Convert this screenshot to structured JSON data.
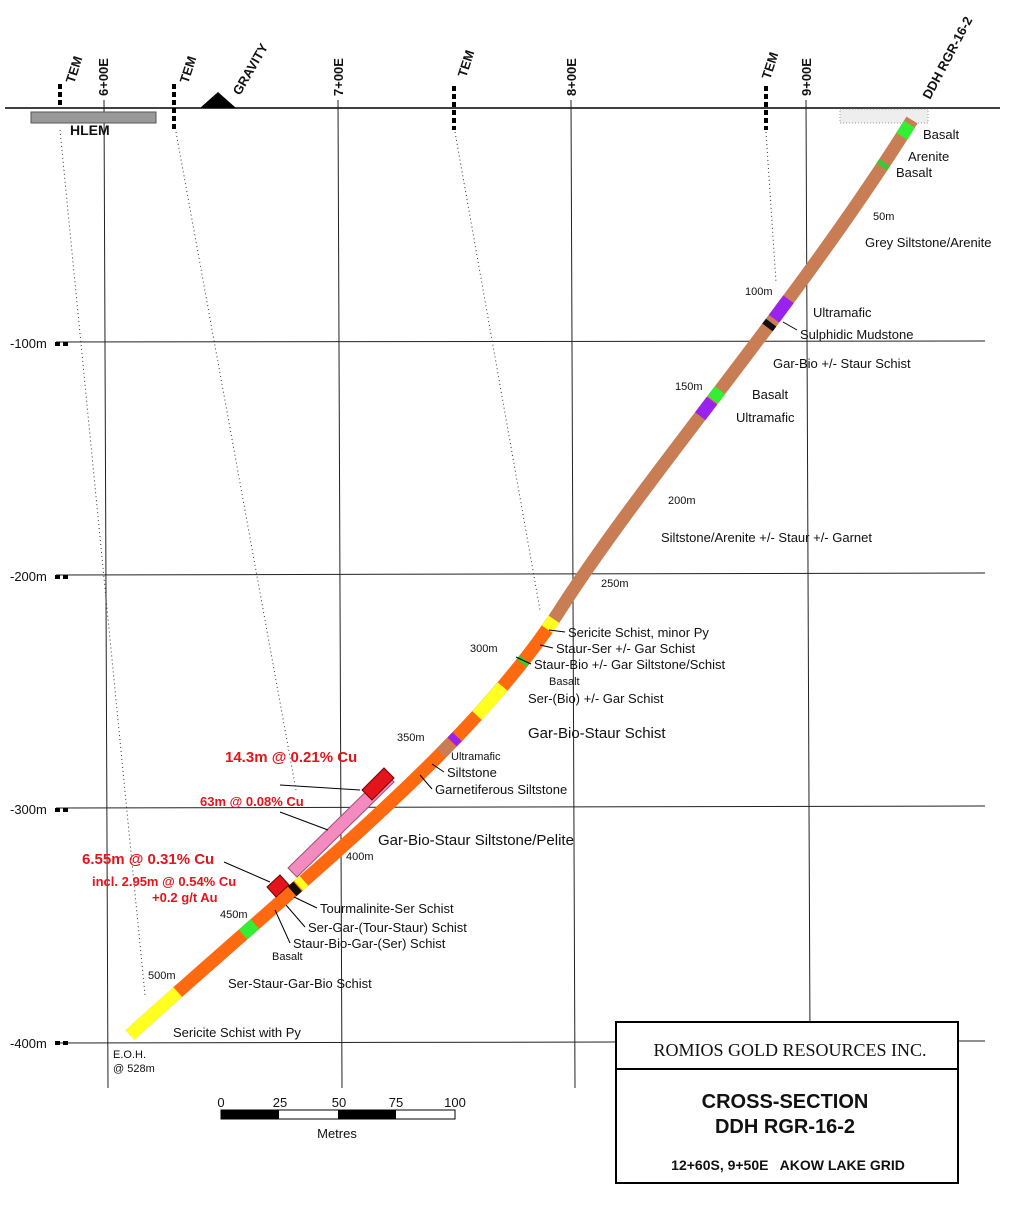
{
  "stations": [
    "6+00E",
    "7+00E",
    "8+00E",
    "9+00E"
  ],
  "surveys": [
    "TEM",
    "TEM",
    "GRAVITY",
    "TEM",
    "TEM",
    "HLEM"
  ],
  "drillhole": "DDH RGR-16-2",
  "depths": [
    "-100m",
    "-200m",
    "-300m",
    "-400m"
  ],
  "hole_depths": [
    "50m",
    "100m",
    "150m",
    "200m",
    "250m",
    "300m",
    "350m",
    "400m",
    "450m",
    "500m"
  ],
  "units": [
    "Basalt",
    "Arenite",
    "Basalt",
    "Grey Siltstone/Arenite",
    "Ultramafic",
    "Sulphidic Mudstone",
    "Gar-Bio +/- Staur Schist",
    "Basalt",
    "Ultramafic",
    "Siltstone/Arenite +/- Staur +/- Garnet",
    "Sericite Schist, minor Py",
    "Staur-Ser +/- Gar Schist",
    "Staur-Bio +/- Gar Siltstone/Schist",
    "Basalt",
    "Ser-(Bio) +/- Gar Schist",
    "Gar-Bio-Staur Schist",
    "Ultramafic",
    "Siltstone",
    "Garnetiferous Siltstone",
    "Gar-Bio-Staur Siltstone/Pelite",
    "Tourmalinite-Ser Schist",
    "Ser-Gar-(Tour-Staur) Schist",
    "Staur-Bio-Gar-(Ser) Schist",
    "Basalt",
    "Ser-Staur-Gar-Bio Schist",
    "Sericite Schist with Py"
  ],
  "intercepts": [
    "14.3m @ 0.21% Cu",
    "63m @ 0.08% Cu",
    "6.55m @ 0.31% Cu",
    "incl. 2.95m @ 0.54% Cu",
    "+0.2 g/t Au"
  ],
  "eoh": [
    "E.O.H.",
    "@ 528m"
  ],
  "scale": {
    "ticks": [
      "0",
      "25",
      "50",
      "75",
      "100"
    ],
    "unit": "Metres"
  },
  "title_block": {
    "company": "ROMIOS GOLD RESOURCES INC.",
    "title": "CROSS-SECTION",
    "hole": "DDH RGR-16-2",
    "location": "12+60S, 9+50E   AKOW LAKE GRID"
  }
}
